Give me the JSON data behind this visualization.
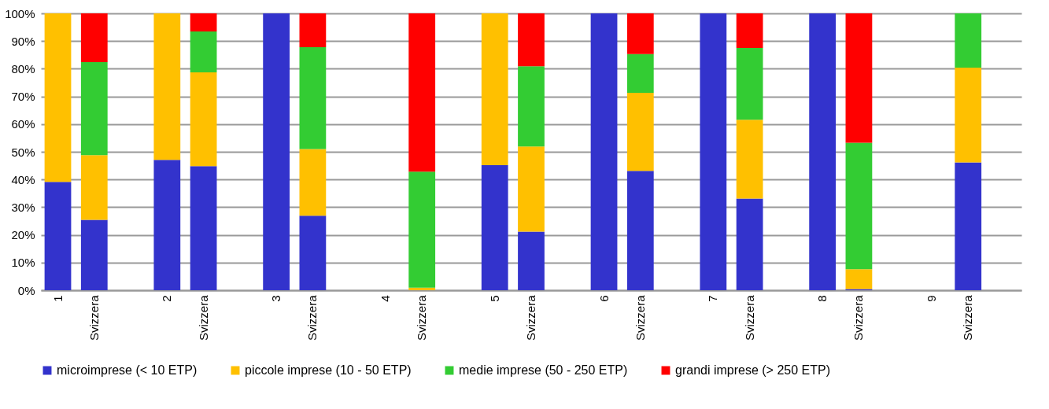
{
  "chart_data": {
    "type": "bar",
    "stacked": true,
    "categories": [
      "1",
      "Svizzera",
      null,
      "2",
      "Svizzera",
      null,
      "3",
      "Svizzera",
      null,
      "4",
      "Svizzera",
      null,
      "5",
      "Svizzera",
      null,
      "6",
      "Svizzera",
      null,
      "7",
      "Svizzera",
      null,
      "8",
      "Svizzera",
      null,
      "9",
      "Svizzera",
      null
    ],
    "series": [
      {
        "name": "microimprese (< 10 ETP)",
        "color": "#3333cc",
        "values": [
          39.1,
          25.4,
          null,
          47.1,
          44.8,
          null,
          100,
          26.9,
          null,
          null,
          0,
          null,
          45.2,
          21.2,
          null,
          100,
          43.1,
          null,
          100,
          33.1,
          null,
          100,
          0.4,
          null,
          null,
          46.2,
          null
        ]
      },
      {
        "name": "piccole imprese (10 - 50 ETP)",
        "color": "#ffc000",
        "values": [
          60.9,
          23.4,
          null,
          52.9,
          33.9,
          null,
          0,
          24.1,
          null,
          null,
          0.9,
          null,
          54.8,
          30.7,
          null,
          0,
          28.2,
          null,
          0,
          28.5,
          null,
          0,
          7.2,
          null,
          null,
          34.2,
          null
        ]
      },
      {
        "name": "medie imprese (50 - 250 ETP)",
        "color": "#33cc33",
        "values": [
          0,
          33.6,
          null,
          0,
          14.8,
          null,
          0,
          36.8,
          null,
          null,
          41.9,
          null,
          0,
          29.0,
          null,
          0,
          14.0,
          null,
          0,
          25.9,
          null,
          0,
          45.7,
          null,
          null,
          19.6,
          null
        ]
      },
      {
        "name": "grandi imprese (> 250 ETP)",
        "color": "#ff0000",
        "values": [
          0,
          17.6,
          null,
          0,
          6.5,
          null,
          0,
          12.2,
          null,
          null,
          57.2,
          null,
          0,
          19.1,
          null,
          0,
          14.7,
          null,
          0,
          12.5,
          null,
          0,
          46.7,
          null,
          null,
          0,
          null
        ]
      }
    ],
    "ylim": [
      0,
      100
    ],
    "yticks": [
      {
        "value": 0,
        "label": "0%"
      },
      {
        "value": 10,
        "label": "10%"
      },
      {
        "value": 20,
        "label": "20%"
      },
      {
        "value": 30,
        "label": "30%"
      },
      {
        "value": 40,
        "label": "40%"
      },
      {
        "value": 50,
        "label": "50%"
      },
      {
        "value": 60,
        "label": "60%"
      },
      {
        "value": 70,
        "label": "70%"
      },
      {
        "value": 80,
        "label": "80%"
      },
      {
        "value": 90,
        "label": "90%"
      },
      {
        "value": 100,
        "label": "100%"
      }
    ],
    "grid": "y",
    "legend": "bottom"
  }
}
